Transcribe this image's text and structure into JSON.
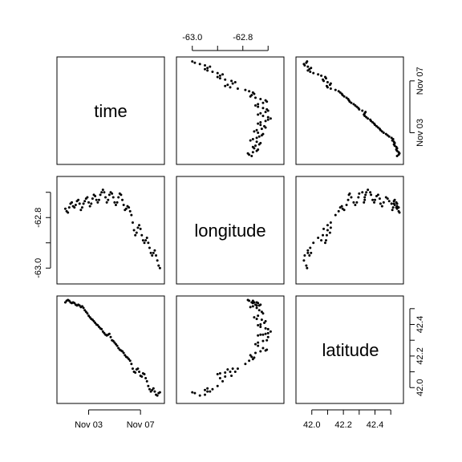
{
  "chart_data": {
    "type": "scatter",
    "layout": "pairs-matrix",
    "variables": [
      {
        "key": "time",
        "label": "time"
      },
      {
        "key": "longitude",
        "label": "longitude"
      },
      {
        "key": "latitude",
        "label": "latitude"
      }
    ],
    "ranges": {
      "time": [
        0.8,
        8.6
      ],
      "longitude": [
        -63.05,
        -62.65
      ],
      "latitude": [
        41.92,
        42.56
      ]
    },
    "ticks": {
      "time": [
        {
          "value": 3,
          "label": "Nov 03"
        },
        {
          "value": 7,
          "label": "Nov 07"
        }
      ],
      "longitude": [
        {
          "value": -63.0,
          "label": "-63.0"
        },
        {
          "value": -62.9,
          "label": ""
        },
        {
          "value": -62.8,
          "label": "-62.8"
        },
        {
          "value": -62.7,
          "label": ""
        }
      ],
      "latitude": [
        {
          "value": 42.0,
          "label": "42.0"
        },
        {
          "value": 42.1,
          "label": ""
        },
        {
          "value": 42.2,
          "label": "42.2"
        },
        {
          "value": 42.3,
          "label": ""
        },
        {
          "value": 42.4,
          "label": "42.4"
        },
        {
          "value": 42.5,
          "label": ""
        }
      ]
    },
    "grid": false,
    "point_color": "#000000",
    "observations": {
      "time": [
        1.2,
        1.3,
        1.4,
        1.5,
        1.6,
        1.7,
        1.8,
        1.9,
        2.0,
        2.1,
        2.2,
        2.3,
        2.4,
        2.5,
        2.6,
        2.7,
        2.8,
        2.9,
        3.0,
        3.1,
        3.2,
        3.3,
        3.4,
        3.5,
        3.6,
        3.7,
        3.8,
        3.9,
        4.0,
        4.1,
        4.2,
        4.3,
        4.4,
        4.5,
        4.6,
        4.7,
        4.8,
        4.9,
        5.0,
        5.1,
        5.2,
        5.3,
        5.4,
        5.5,
        5.6,
        5.7,
        5.8,
        5.9,
        6.0,
        6.1,
        6.2,
        6.3,
        6.4,
        6.5,
        6.6,
        6.7,
        6.8,
        6.9,
        7.0,
        7.1,
        7.2,
        7.3,
        7.4,
        7.5,
        7.6,
        7.7,
        7.8,
        7.9,
        8.0,
        8.1,
        8.2,
        8.3,
        8.4,
        8.5
      ],
      "longitude": [
        -62.765,
        -62.775,
        -62.78,
        -62.76,
        -62.745,
        -62.74,
        -62.755,
        -62.76,
        -62.75,
        -62.735,
        -62.73,
        -62.745,
        -62.77,
        -62.76,
        -62.745,
        -62.735,
        -62.725,
        -62.72,
        -62.74,
        -62.755,
        -62.745,
        -62.725,
        -62.71,
        -62.715,
        -62.73,
        -62.74,
        -62.73,
        -62.71,
        -62.7,
        -62.69,
        -62.7,
        -62.72,
        -62.74,
        -62.73,
        -62.71,
        -62.7,
        -62.705,
        -62.72,
        -62.74,
        -62.75,
        -62.74,
        -62.72,
        -62.705,
        -62.71,
        -62.73,
        -62.75,
        -62.77,
        -62.765,
        -62.755,
        -62.76,
        -62.775,
        -62.79,
        -62.82,
        -62.85,
        -62.87,
        -62.86,
        -62.84,
        -62.83,
        -62.845,
        -62.87,
        -62.89,
        -62.9,
        -62.89,
        -62.88,
        -62.9,
        -62.92,
        -62.94,
        -62.95,
        -62.94,
        -62.93,
        -62.95,
        -62.97,
        -62.99,
        -63.0
      ],
      "latitude": [
        42.54,
        42.55,
        42.555,
        42.55,
        42.54,
        42.535,
        42.54,
        42.535,
        42.525,
        42.52,
        42.525,
        42.52,
        42.51,
        42.515,
        42.505,
        42.49,
        42.48,
        42.47,
        42.455,
        42.445,
        42.435,
        42.43,
        42.42,
        42.41,
        42.4,
        42.395,
        42.385,
        42.375,
        42.37,
        42.355,
        42.345,
        42.335,
        42.33,
        42.335,
        42.34,
        42.32,
        42.3,
        42.295,
        42.285,
        42.275,
        42.265,
        42.25,
        42.24,
        42.235,
        42.23,
        42.22,
        42.205,
        42.195,
        42.19,
        42.18,
        42.17,
        42.15,
        42.12,
        42.1,
        42.095,
        42.115,
        42.12,
        42.1,
        42.075,
        42.07,
        42.09,
        42.085,
        42.06,
        42.04,
        42.01,
        41.99,
        41.975,
        41.985,
        41.995,
        41.975,
        41.955,
        41.95,
        41.965,
        41.97
      ]
    }
  }
}
